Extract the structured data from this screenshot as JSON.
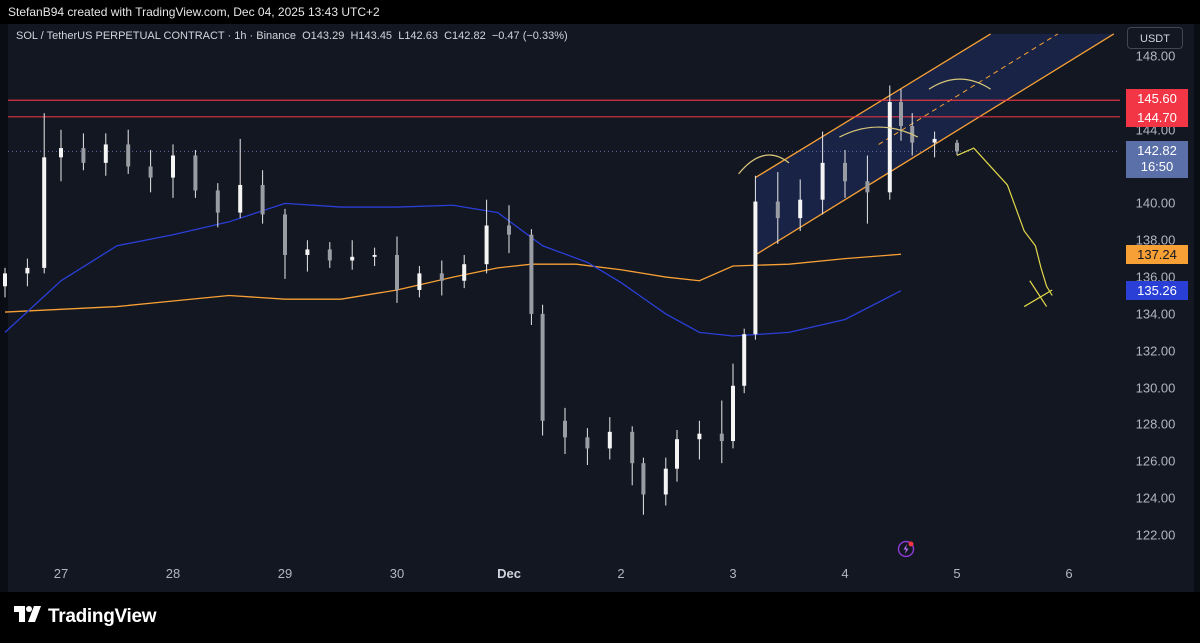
{
  "header": {
    "attribution": "StefanB94 created with TradingView.com, Dec 04, 2025 13:43 UTC+2"
  },
  "legend": {
    "symbol": "SOL / TetherUS PERPETUAL CONTRACT · 1h · Binance",
    "open_label": "O",
    "open": "143.29",
    "high_label": "H",
    "high": "143.45",
    "low_label": "L",
    "low": "142.63",
    "close_label": "C",
    "close": "142.82",
    "change": "−0.47 (−0.33%)"
  },
  "currency": "USDT",
  "price_axis": [
    "148.00",
    "144.00",
    "140.00",
    "138.00",
    "136.00",
    "134.00",
    "132.00",
    "130.00",
    "128.00",
    "126.00",
    "124.00",
    "122.00"
  ],
  "price_tags": {
    "level_1": "145.60",
    "level_2": "144.70",
    "last_price": "142.82",
    "countdown": "16:50",
    "ma_slow": "137.24",
    "ma_fast": "135.26"
  },
  "time_axis": [
    "27",
    "28",
    "29",
    "30",
    "Dec",
    "2",
    "3",
    "4",
    "5",
    "6"
  ],
  "brand": {
    "name": "TradingView"
  },
  "icons": {
    "logo": "tradingview-logo-icon",
    "flash": "lightning-icon"
  },
  "colors": {
    "background": "#131722",
    "resistance": "#f23645",
    "channel": "#f7a035",
    "ma_slow": "#f7a035",
    "ma_fast": "#2a3fd6",
    "last_price_tag": "#5b6fa8",
    "candle": "#e8e8ea",
    "projection": "#e3d94a"
  },
  "chart_data": {
    "type": "candlestick",
    "symbol": "SOL / TetherUS PERPETUAL CONTRACT",
    "interval": "1h",
    "exchange": "Binance",
    "x_ticks": [
      "27",
      "28",
      "29",
      "30",
      "Dec",
      "2",
      "3",
      "4",
      "5",
      "6"
    ],
    "ylim": [
      121,
      149
    ],
    "y_ticks": [
      122,
      124,
      126,
      128,
      130,
      132,
      134,
      136,
      138,
      140,
      144,
      148
    ],
    "last": {
      "open": 143.29,
      "high": 143.45,
      "low": 142.63,
      "close": 142.82
    },
    "horizontal_levels": [
      145.6,
      144.7
    ],
    "moving_averages": [
      {
        "color": "orange",
        "last": 137.24,
        "points": [
          [
            26.5,
            134.1
          ],
          [
            27.5,
            134.4
          ],
          [
            28.0,
            134.7
          ],
          [
            28.5,
            135.0
          ],
          [
            29.0,
            134.8
          ],
          [
            29.5,
            134.8
          ],
          [
            30.0,
            135.3
          ],
          [
            30.5,
            136.0
          ],
          [
            30.9,
            136.5
          ],
          [
            31.2,
            136.7
          ],
          [
            31.6,
            136.7
          ],
          [
            32.0,
            136.4
          ],
          [
            32.4,
            136.0
          ],
          [
            32.7,
            135.8
          ],
          [
            33.0,
            136.6
          ],
          [
            33.5,
            136.7
          ],
          [
            34.0,
            137.0
          ],
          [
            34.5,
            137.24
          ]
        ]
      },
      {
        "color": "blue",
        "last": 135.26,
        "points": [
          [
            26.5,
            133.0
          ],
          [
            27.0,
            135.8
          ],
          [
            27.5,
            137.7
          ],
          [
            28.0,
            138.3
          ],
          [
            28.5,
            139.0
          ],
          [
            29.0,
            140.0
          ],
          [
            29.5,
            139.8
          ],
          [
            30.0,
            139.8
          ],
          [
            30.5,
            139.9
          ],
          [
            30.9,
            139.5
          ],
          [
            31.3,
            137.7
          ],
          [
            31.7,
            136.8
          ],
          [
            32.0,
            135.7
          ],
          [
            32.4,
            134.0
          ],
          [
            32.7,
            133.0
          ],
          [
            33.0,
            132.8
          ],
          [
            33.5,
            133.0
          ],
          [
            34.0,
            133.7
          ],
          [
            34.5,
            135.26
          ]
        ]
      }
    ],
    "candles_approx": [
      [
        26.5,
        135.5,
        136.5,
        134.9,
        136.2
      ],
      [
        26.7,
        136.2,
        137.0,
        135.5,
        136.5
      ],
      [
        26.85,
        136.5,
        144.9,
        136.2,
        142.5
      ],
      [
        27.0,
        142.5,
        144.0,
        141.2,
        143.0
      ],
      [
        27.2,
        143.0,
        143.8,
        141.8,
        142.2
      ],
      [
        27.4,
        142.2,
        143.8,
        141.5,
        143.2
      ],
      [
        27.6,
        143.2,
        144.0,
        141.6,
        142.0
      ],
      [
        27.8,
        142.0,
        142.9,
        140.6,
        141.4
      ],
      [
        28.0,
        141.4,
        143.2,
        140.3,
        142.6
      ],
      [
        28.2,
        142.6,
        142.9,
        140.3,
        140.7
      ],
      [
        28.4,
        140.7,
        141.1,
        138.7,
        139.5
      ],
      [
        28.6,
        139.5,
        143.5,
        139.2,
        141.0
      ],
      [
        28.8,
        141.0,
        141.8,
        138.9,
        139.4
      ],
      [
        29.0,
        139.4,
        139.7,
        135.9,
        137.2
      ],
      [
        29.2,
        137.2,
        138.0,
        136.3,
        137.5
      ],
      [
        29.4,
        137.5,
        137.9,
        136.5,
        136.9
      ],
      [
        29.6,
        136.9,
        138.0,
        136.4,
        137.1
      ],
      [
        29.8,
        137.1,
        137.6,
        136.6,
        137.2
      ],
      [
        30.0,
        137.2,
        138.2,
        134.6,
        135.3
      ],
      [
        30.2,
        135.3,
        136.6,
        134.9,
        136.2
      ],
      [
        30.4,
        136.2,
        136.9,
        135.0,
        135.8
      ],
      [
        30.6,
        135.8,
        137.2,
        135.4,
        136.7
      ],
      [
        30.8,
        136.7,
        140.2,
        136.2,
        138.8
      ],
      [
        31.0,
        138.8,
        139.9,
        137.3,
        138.3
      ],
      [
        31.2,
        138.3,
        138.6,
        133.4,
        134.0
      ],
      [
        31.3,
        134.0,
        134.5,
        127.4,
        128.2
      ],
      [
        31.5,
        128.2,
        128.9,
        126.4,
        127.3
      ],
      [
        31.7,
        127.3,
        127.8,
        125.8,
        126.7
      ],
      [
        31.9,
        126.7,
        128.4,
        126.1,
        127.6
      ],
      [
        32.1,
        127.6,
        127.9,
        124.7,
        125.9
      ],
      [
        32.2,
        125.9,
        126.2,
        123.1,
        124.2
      ],
      [
        32.4,
        124.2,
        126.2,
        123.6,
        125.6
      ],
      [
        32.5,
        125.6,
        127.7,
        124.9,
        127.2
      ],
      [
        32.7,
        127.2,
        128.2,
        126.1,
        127.5
      ],
      [
        32.9,
        127.5,
        129.3,
        125.9,
        127.1
      ],
      [
        33.0,
        127.1,
        131.3,
        126.7,
        130.1
      ],
      [
        33.1,
        130.1,
        133.2,
        129.7,
        132.9
      ],
      [
        33.2,
        132.9,
        141.5,
        132.6,
        140.1
      ],
      [
        33.4,
        140.1,
        141.7,
        137.8,
        139.2
      ],
      [
        33.6,
        139.2,
        141.3,
        138.5,
        140.2
      ],
      [
        33.8,
        140.2,
        143.9,
        139.4,
        142.2
      ],
      [
        34.0,
        142.2,
        142.9,
        140.3,
        141.2
      ],
      [
        34.2,
        141.2,
        142.6,
        138.9,
        140.6
      ],
      [
        34.4,
        140.6,
        146.4,
        140.2,
        145.5
      ],
      [
        34.5,
        145.5,
        146.2,
        143.4,
        144.2
      ],
      [
        34.6,
        144.2,
        144.9,
        142.6,
        143.3
      ],
      [
        34.8,
        143.3,
        143.9,
        142.5,
        143.5
      ],
      [
        35.0,
        143.29,
        143.45,
        142.63,
        142.82
      ]
    ]
  }
}
